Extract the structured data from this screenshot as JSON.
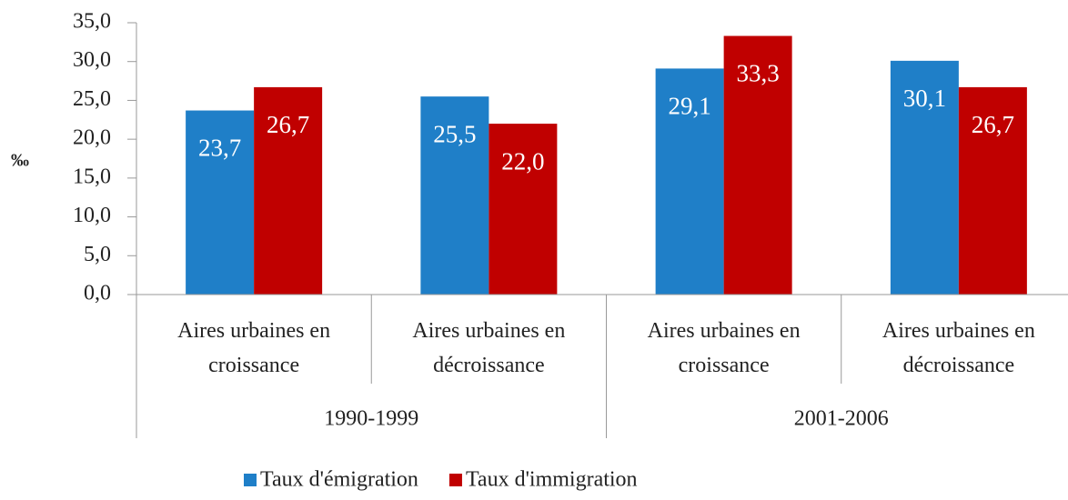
{
  "chart_data": {
    "type": "bar",
    "ylabel": "‰",
    "categories": [
      "Aires urbaines en croissance",
      "Aires urbaines en décroissance",
      "Aires urbaines en croissance",
      "Aires urbaines en décroissance"
    ],
    "groups": [
      "1990-1999",
      "2001-2006"
    ],
    "series": [
      {
        "name": "Taux d'émigration",
        "color": "#1f7fc8",
        "values": [
          23.7,
          25.5,
          29.1,
          30.1
        ],
        "value_labels": [
          "23,7",
          "25,5",
          "29,1",
          "30,1"
        ]
      },
      {
        "name": "Taux d'immigration",
        "color": "#c00000",
        "values": [
          26.7,
          22.0,
          33.3,
          26.7
        ],
        "value_labels": [
          "26,7",
          "22,0",
          "33,3",
          "26,7"
        ]
      }
    ],
    "ylim": [
      0,
      35
    ],
    "yticks": [
      {
        "value": 0,
        "label": "0,0"
      },
      {
        "value": 5,
        "label": "5,0"
      },
      {
        "value": 10,
        "label": "10,0"
      },
      {
        "value": 15,
        "label": "15,0"
      },
      {
        "value": 20,
        "label": "20,0"
      },
      {
        "value": 25,
        "label": "25,0"
      },
      {
        "value": 30,
        "label": "30,0"
      },
      {
        "value": 35,
        "label": "35,0"
      }
    ],
    "legend": "bottom"
  }
}
